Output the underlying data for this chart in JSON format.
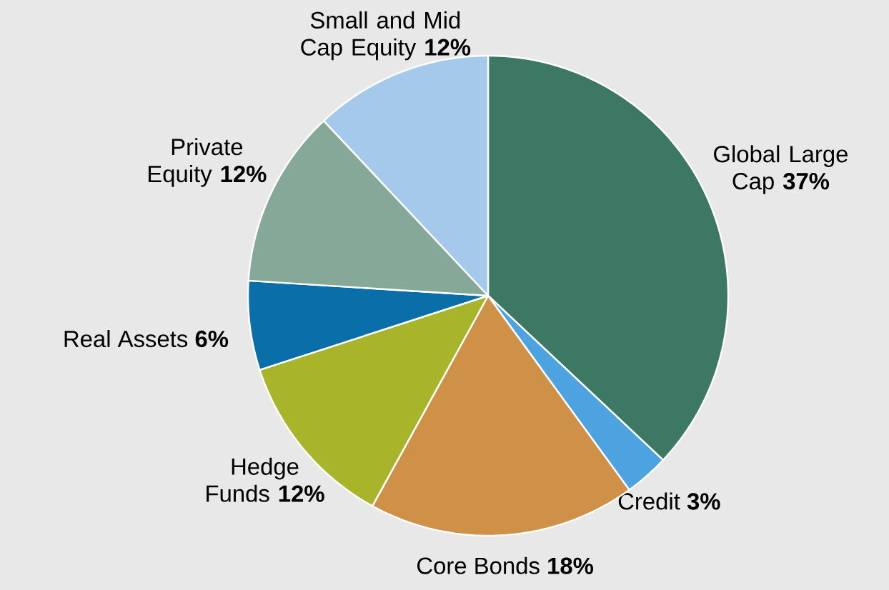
{
  "chart_data": {
    "type": "pie",
    "categories": [
      "Global Large Cap",
      "Credit",
      "Core Bonds",
      "Hedge Funds",
      "Real Assets",
      "Private Equity",
      "Small and Mid Cap Equity"
    ],
    "values": [
      37,
      3,
      18,
      12,
      6,
      12,
      12
    ],
    "value_labels": [
      "37%",
      "3%",
      "18%",
      "12%",
      "6%",
      "12%",
      "12%"
    ],
    "colors": [
      "#3d7864",
      "#4da3e0",
      "#cf9148",
      "#a8b52a",
      "#0a6fa8",
      "#86a898",
      "#a5c9ea"
    ]
  }
}
